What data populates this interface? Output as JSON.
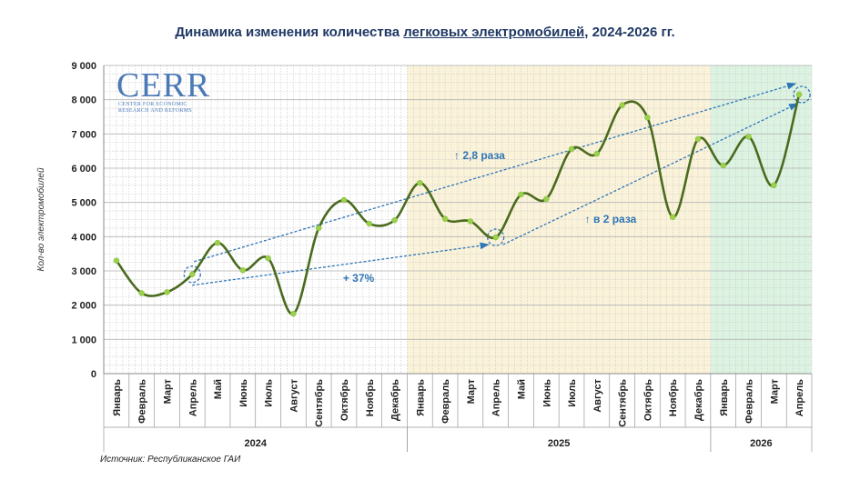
{
  "title": {
    "prefix": "Динамика изменения количества ",
    "underlined": "легковых электромобилей",
    "suffix": ", 2024-2026 гг."
  },
  "logo": {
    "main": "CERR",
    "line1": "CENTER FOR ECONOMIC",
    "line2": "RESEARCH AND REFORMS"
  },
  "source": "Источник: Республиканское ГАИ",
  "colors": {
    "line": "#4a6b1e",
    "marker": "#9bd14a",
    "band_2025": "#fbf3d9",
    "band_2026": "#dcf3e2",
    "annotation": "#2e75b6"
  },
  "chart_data": {
    "type": "line",
    "title": "Динамика изменения количества легковых электромобилей, 2024-2026 гг.",
    "ylabel": "Кол-во электромобилей",
    "xlabel": "",
    "ylim": [
      0,
      9000
    ],
    "yticks": [
      "0",
      "1 000",
      "2 000",
      "3 000",
      "4 000",
      "5 000",
      "6 000",
      "7 000",
      "8 000",
      "9 000"
    ],
    "grid": true,
    "smooth": true,
    "categories": [
      "Январь",
      "Февраль",
      "Март",
      "Апрель",
      "Май",
      "Июнь",
      "Июль",
      "Август",
      "Сентябрь",
      "Октябрь",
      "Ноябрь",
      "Декабрь",
      "Январь",
      "Февраль",
      "Март",
      "Апрель",
      "Май",
      "Июнь",
      "Июль",
      "Август",
      "Сентябрь",
      "Октябрь",
      "Ноябрь",
      "Декабрь",
      "Январь",
      "Февраль",
      "Март",
      "Апрель"
    ],
    "years": [
      {
        "label": "2024",
        "count": 12
      },
      {
        "label": "2025",
        "count": 12
      },
      {
        "label": "2026",
        "count": 4
      }
    ],
    "series": [
      {
        "values": [
          3300,
          2350,
          2380,
          2900,
          3820,
          3020,
          3370,
          1750,
          4250,
          5070,
          4380,
          4480,
          5570,
          4520,
          4450,
          3980,
          5230,
          5100,
          6560,
          6420,
          7840,
          7480,
          4570,
          6850,
          6080,
          6920,
          5500,
          8150
        ]
      }
    ],
    "annotations": [
      {
        "text": "↑ 2,8 раза",
        "from_index": 3,
        "to_index": 27
      },
      {
        "text": "↑ в 2 раза",
        "from_index": 15,
        "to_index": 27
      },
      {
        "text": "+ 37%",
        "from_index": 3,
        "to_index": 15
      }
    ]
  }
}
